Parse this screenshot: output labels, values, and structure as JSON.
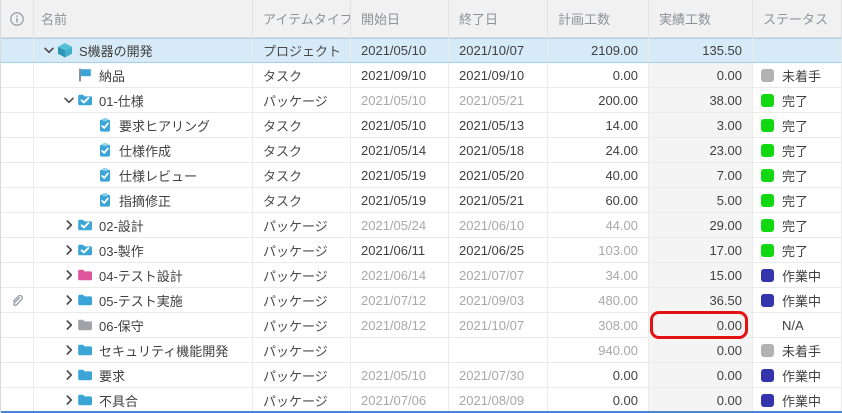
{
  "header": {
    "columns": [
      "",
      "名前",
      "アイテムタイプ",
      "開始日",
      "終了日",
      "計画工数",
      "実績工数",
      "ステータス"
    ],
    "info_icon": "info-circle-icon"
  },
  "statuses": {
    "completed": {
      "label": "完了",
      "color": "#12d812"
    },
    "in_progress": {
      "label": "作業中",
      "color": "#3434ad"
    },
    "not_started": {
      "label": "未着手",
      "color": "#b2b2b2"
    },
    "na": {
      "label": "N/A",
      "color": null
    }
  },
  "rows": [
    {
      "name": "S機器の開発",
      "icon": "project-cube-icon",
      "level": 0,
      "expand": "expanded",
      "type": "プロジェクト",
      "start": "2021/05/10",
      "end": "2021/10/07",
      "planned": "2109.00",
      "actual": "135.50",
      "status": null,
      "selected": true,
      "muted": [],
      "attachment": false,
      "annotated": false
    },
    {
      "name": "納品",
      "icon": "flag-icon",
      "level": 1,
      "expand": null,
      "type": "タスク",
      "start": "2021/09/10",
      "end": "2021/09/10",
      "planned": "0.00",
      "actual": "0.00",
      "status": "not_started",
      "selected": false,
      "muted": [],
      "attachment": false,
      "annotated": false
    },
    {
      "name": "01-仕様",
      "icon": "folder-check-icon",
      "level": 1,
      "expand": "expanded",
      "type": "パッケージ",
      "start": "2021/05/10",
      "end": "2021/05/21",
      "planned": "200.00",
      "actual": "38.00",
      "status": "completed",
      "selected": false,
      "muted": [
        "start",
        "end"
      ],
      "attachment": false,
      "annotated": false
    },
    {
      "name": "要求ヒアリング",
      "icon": "task-clipboard-icon",
      "level": 2,
      "expand": null,
      "type": "タスク",
      "start": "2021/05/10",
      "end": "2021/05/13",
      "planned": "14.00",
      "actual": "3.00",
      "status": "completed",
      "selected": false,
      "muted": [],
      "attachment": false,
      "annotated": false
    },
    {
      "name": "仕様作成",
      "icon": "task-clipboard-icon",
      "level": 2,
      "expand": null,
      "type": "タスク",
      "start": "2021/05/14",
      "end": "2021/05/18",
      "planned": "24.00",
      "actual": "23.00",
      "status": "completed",
      "selected": false,
      "muted": [],
      "attachment": false,
      "annotated": false
    },
    {
      "name": "仕様レビュー",
      "icon": "task-clipboard-icon",
      "level": 2,
      "expand": null,
      "type": "タスク",
      "start": "2021/05/19",
      "end": "2021/05/20",
      "planned": "40.00",
      "actual": "7.00",
      "status": "completed",
      "selected": false,
      "muted": [],
      "attachment": false,
      "annotated": false
    },
    {
      "name": "指摘修正",
      "icon": "task-clipboard-icon",
      "level": 2,
      "expand": null,
      "type": "タスク",
      "start": "2021/05/19",
      "end": "2021/05/21",
      "planned": "60.00",
      "actual": "5.00",
      "status": "completed",
      "selected": false,
      "muted": [],
      "attachment": false,
      "annotated": false
    },
    {
      "name": "02-設計",
      "icon": "folder-check-icon",
      "level": 1,
      "expand": "collapsed",
      "type": "パッケージ",
      "start": "2021/05/24",
      "end": "2021/06/10",
      "planned": "44.00",
      "actual": "29.00",
      "status": "completed",
      "selected": false,
      "muted": [
        "start",
        "end",
        "planned"
      ],
      "attachment": false,
      "annotated": false
    },
    {
      "name": "03-製作",
      "icon": "folder-check-icon",
      "level": 1,
      "expand": "collapsed",
      "type": "パッケージ",
      "start": "2021/06/11",
      "end": "2021/06/25",
      "planned": "103.00",
      "actual": "17.00",
      "status": "completed",
      "selected": false,
      "muted": [
        "planned"
      ],
      "attachment": false,
      "annotated": false
    },
    {
      "name": "04-テスト設計",
      "icon": "folder-pink-icon",
      "level": 1,
      "expand": "collapsed",
      "type": "パッケージ",
      "start": "2021/06/14",
      "end": "2021/07/07",
      "planned": "34.00",
      "actual": "15.00",
      "status": "in_progress",
      "selected": false,
      "muted": [
        "start",
        "end",
        "planned"
      ],
      "attachment": false,
      "annotated": false
    },
    {
      "name": "05-テスト実施",
      "icon": "folder-blue-icon",
      "level": 1,
      "expand": "collapsed",
      "type": "パッケージ",
      "start": "2021/07/12",
      "end": "2021/09/03",
      "planned": "480.00",
      "actual": "36.50",
      "status": "in_progress",
      "selected": false,
      "muted": [
        "start",
        "end",
        "planned"
      ],
      "attachment": true,
      "annotated": false
    },
    {
      "name": "06-保守",
      "icon": "folder-gray-icon",
      "level": 1,
      "expand": "collapsed",
      "type": "パッケージ",
      "start": "2021/08/12",
      "end": "2021/10/07",
      "planned": "308.00",
      "actual": "0.00",
      "status": "na",
      "selected": false,
      "muted": [
        "start",
        "end",
        "planned"
      ],
      "attachment": false,
      "annotated": true
    },
    {
      "name": "セキュリティ機能開発",
      "icon": "folder-blue-icon",
      "level": 1,
      "expand": "collapsed",
      "type": "パッケージ",
      "start": "",
      "end": "",
      "planned": "940.00",
      "actual": "0.00",
      "status": "not_started",
      "selected": false,
      "muted": [
        "planned"
      ],
      "attachment": false,
      "annotated": false
    },
    {
      "name": "要求",
      "icon": "folder-blue-icon",
      "level": 1,
      "expand": "collapsed",
      "type": "パッケージ",
      "start": "2021/05/10",
      "end": "2021/07/30",
      "planned": "0.00",
      "actual": "0.00",
      "status": "in_progress",
      "selected": false,
      "muted": [
        "start",
        "end"
      ],
      "attachment": false,
      "annotated": false
    },
    {
      "name": "不具合",
      "icon": "folder-blue-icon",
      "level": 1,
      "expand": "collapsed",
      "type": "パッケージ",
      "start": "2021/07/06",
      "end": "2021/08/09",
      "planned": "0.00",
      "actual": "0.00",
      "status": "in_progress",
      "selected": false,
      "muted": [
        "start",
        "end"
      ],
      "attachment": false,
      "annotated": false
    }
  ],
  "annotation": {
    "shape": "red-rounded-rectangle",
    "row": "06-保守",
    "column": "実績工数",
    "value": "0.00",
    "color": "#e31212"
  },
  "colors": {
    "selected_row_bg": "#d7eaf7",
    "selected_row_border": "#a9cfe7",
    "actual_column_bg": "#f4f4f4",
    "header_bg": "#f1f1f2",
    "annotation_red": "#e31212",
    "bottom_bar_blue": "#4a86d8",
    "icon_teal": "#3fb0cc",
    "icon_blue": "#3aa5d6",
    "icon_pink": "#e0549c",
    "icon_gray": "#9fa3a7",
    "chevron": "#4a4a4a",
    "paperclip": "#98a0a8"
  }
}
